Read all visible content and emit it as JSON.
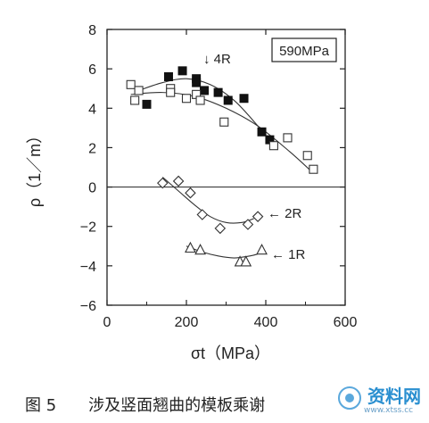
{
  "chart_data": {
    "type": "scatter",
    "xlabel": "σt（MPa）",
    "ylabel": "ρ（1／m）",
    "xlim": [
      0,
      600
    ],
    "ylim": [
      -6,
      8
    ],
    "x_ticks": [
      "0",
      "200",
      "400",
      "600"
    ],
    "y_ticks": [
      "8",
      "6",
      "4",
      "2",
      "0",
      "−2",
      "−4",
      "−6"
    ],
    "grid": false,
    "legend_box": "590MPa",
    "series": [
      {
        "name": "4R",
        "marker": "filled-square",
        "points": [
          [
            100,
            4.2
          ],
          [
            155,
            5.6
          ],
          [
            190,
            5.9
          ],
          [
            225,
            5.5
          ],
          [
            225,
            5.3
          ],
          [
            245,
            4.9
          ],
          [
            280,
            4.8
          ],
          [
            305,
            4.4
          ],
          [
            345,
            4.5
          ],
          [
            390,
            2.8
          ],
          [
            410,
            2.4
          ]
        ],
        "fit": [
          [
            80,
            4.9
          ],
          [
            140,
            5.3
          ],
          [
            200,
            5.5
          ],
          [
            260,
            5.2
          ],
          [
            320,
            4.4
          ],
          [
            380,
            3.1
          ],
          [
            420,
            2.1
          ]
        ]
      },
      {
        "name": "4R",
        "marker": "open-square",
        "points": [
          [
            60,
            5.2
          ],
          [
            70,
            4.4
          ],
          [
            80,
            4.9
          ],
          [
            160,
            5.0
          ],
          [
            160,
            4.8
          ],
          [
            200,
            4.5
          ],
          [
            225,
            4.7
          ],
          [
            235,
            4.4
          ],
          [
            295,
            3.3
          ],
          [
            420,
            2.1
          ],
          [
            455,
            2.5
          ],
          [
            505,
            1.6
          ],
          [
            520,
            0.9
          ]
        ],
        "fit": [
          [
            60,
            4.7
          ],
          [
            140,
            4.8
          ],
          [
            220,
            4.6
          ],
          [
            300,
            4.0
          ],
          [
            380,
            3.1
          ],
          [
            460,
            1.8
          ],
          [
            520,
            0.7
          ]
        ]
      },
      {
        "name": "2R",
        "marker": "open-diamond",
        "points": [
          [
            140,
            0.2
          ],
          [
            180,
            0.3
          ],
          [
            210,
            -0.3
          ],
          [
            240,
            -1.4
          ],
          [
            285,
            -2.1
          ],
          [
            355,
            -1.9
          ],
          [
            380,
            -1.5
          ]
        ],
        "fit": [
          [
            140,
            0.5
          ],
          [
            180,
            -0.2
          ],
          [
            220,
            -0.9
          ],
          [
            260,
            -1.5
          ],
          [
            300,
            -1.8
          ],
          [
            340,
            -1.8
          ],
          [
            370,
            -1.6
          ]
        ]
      },
      {
        "name": "1R",
        "marker": "open-triangle",
        "points": [
          [
            210,
            -3.1
          ],
          [
            235,
            -3.2
          ],
          [
            335,
            -3.8
          ],
          [
            350,
            -3.8
          ],
          [
            390,
            -3.2
          ]
        ],
        "fit": [
          [
            200,
            -3.0
          ],
          [
            240,
            -3.3
          ],
          [
            280,
            -3.5
          ],
          [
            320,
            -3.6
          ],
          [
            360,
            -3.5
          ],
          [
            380,
            -3.4
          ]
        ]
      }
    ],
    "annotations": [
      "↓ 4R",
      "← 2R",
      "← 1R"
    ]
  },
  "caption": "图 5　　涉及竖面翘曲的模板乘谢",
  "watermark": {
    "text": "资料网",
    "url": "www.xtss.cc"
  }
}
